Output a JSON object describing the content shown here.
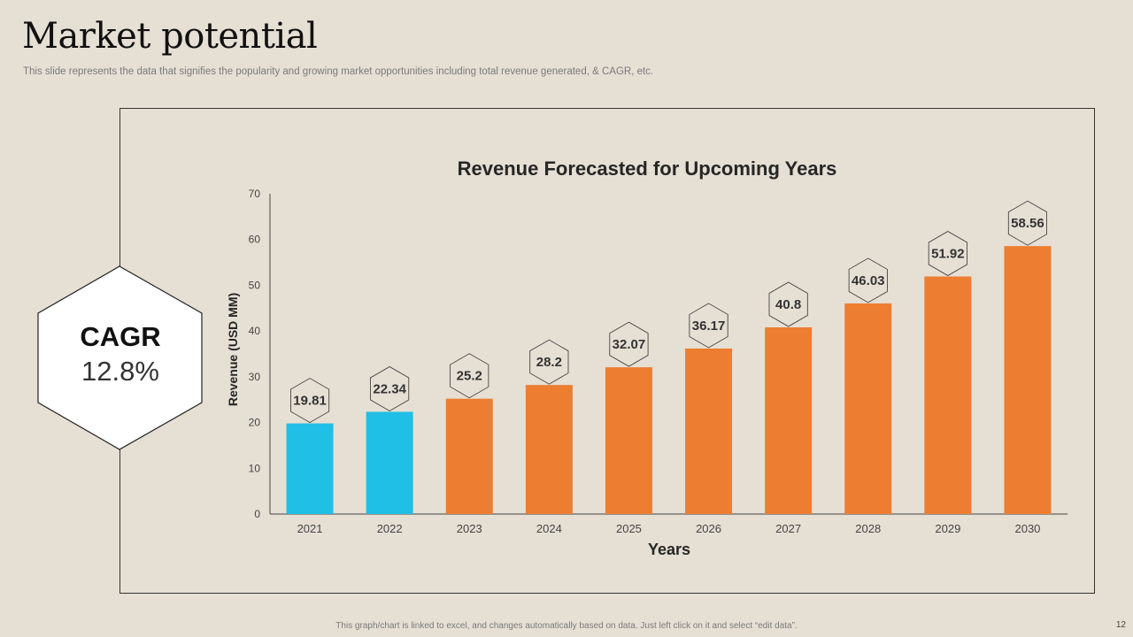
{
  "slide": {
    "title": "Market potential",
    "subtitle": "This slide represents the data that signifies the popularity and growing market opportunities including total revenue generated, & CAGR,  etc.",
    "footer": "This graph/chart is linked to excel, and changes automatically based on data. Just left click on it and select “edit data”.",
    "page_number": "12"
  },
  "cagr": {
    "label": "CAGR",
    "value": "12.8%"
  },
  "colors": {
    "blue": "#1fbfe6",
    "orange": "#ed7d31",
    "background": "#e6dfd4"
  },
  "chart_data": {
    "type": "bar",
    "title": "Revenue Forecasted for Upcoming Years",
    "xlabel": "Years",
    "ylabel": "Revenue (USD MM)",
    "categories": [
      "2021",
      "2022",
      "2023",
      "2024",
      "2025",
      "2026",
      "2027",
      "2028",
      "2029",
      "2030"
    ],
    "values": [
      19.81,
      22.34,
      25.2,
      28.2,
      32.07,
      36.17,
      40.8,
      46.03,
      51.92,
      58.56
    ],
    "value_labels": [
      "19.81",
      "22.34",
      "25.2",
      "28.2",
      "32.07",
      "36.17",
      "40.8",
      "46.03",
      "51.92",
      "58.56"
    ],
    "bar_colors": [
      "#1fbfe6",
      "#1fbfe6",
      "#ed7d31",
      "#ed7d31",
      "#ed7d31",
      "#ed7d31",
      "#ed7d31",
      "#ed7d31",
      "#ed7d31",
      "#ed7d31"
    ],
    "ylim": [
      0,
      70
    ],
    "yticks": [
      "0",
      "10",
      "20",
      "30",
      "40",
      "50",
      "60",
      "70"
    ],
    "grid": false,
    "legend": "none"
  }
}
